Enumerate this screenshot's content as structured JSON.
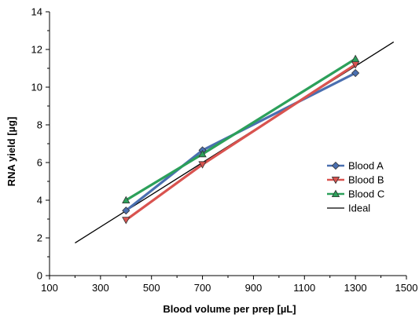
{
  "chart_data": {
    "type": "line",
    "title": "",
    "xlabel": "Blood volume per prep [µL]",
    "ylabel": "RNA yield [µg]",
    "xlim": [
      100,
      1500
    ],
    "ylim": [
      0,
      14
    ],
    "x_ticks": [
      100,
      300,
      500,
      700,
      900,
      1100,
      1300,
      1500
    ],
    "y_ticks": [
      0,
      2,
      4,
      6,
      8,
      10,
      12,
      14
    ],
    "grid": false,
    "legend_position": "right",
    "series": [
      {
        "name": "Blood A",
        "color": "#4a6fb0",
        "marker": "diamond",
        "x": [
          400,
          700,
          1300
        ],
        "y": [
          3.45,
          6.65,
          10.75
        ]
      },
      {
        "name": "Blood B",
        "color": "#d9534f",
        "marker": "triangle-down",
        "x": [
          400,
          700,
          1300
        ],
        "y": [
          2.95,
          5.9,
          11.2
        ]
      },
      {
        "name": "Blood C",
        "color": "#2ca05a",
        "marker": "triangle-up",
        "x": [
          400,
          700,
          1300
        ],
        "y": [
          4.0,
          6.45,
          11.5
        ]
      },
      {
        "name": "Ideal",
        "color": "#000000",
        "marker": "none",
        "x": [
          200,
          1450
        ],
        "y": [
          1.73,
          12.4
        ]
      }
    ]
  }
}
